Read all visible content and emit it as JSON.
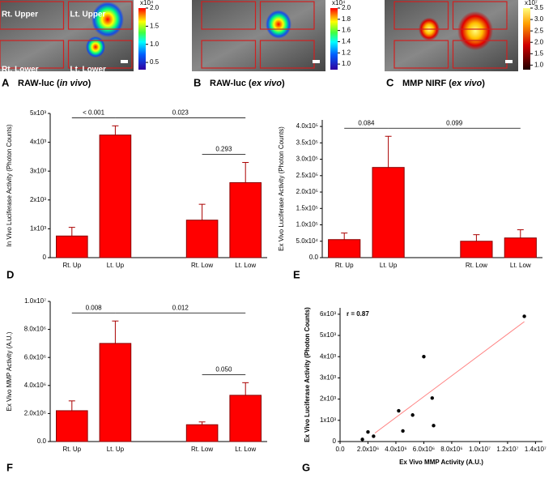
{
  "image_panels": [
    {
      "letter": "A",
      "title": [
        "RAW-luc (",
        "in vivo",
        ")"
      ],
      "regions": [
        "Rt. Upper",
        "Lt. Upper",
        "Rt. Lower",
        "Lt. Lower"
      ],
      "colorbar": {
        "colormap": "jet",
        "exponent": "x10⁴",
        "range": [
          0.3,
          2.0
        ],
        "ticks": [
          {
            "value": 2,
            "label": "2.0"
          },
          1.5,
          {
            "value": 1,
            "label": "1.0"
          },
          0.5
        ]
      }
    },
    {
      "letter": "B",
      "title": [
        "RAW-luc (",
        "ex vivo",
        ")"
      ],
      "colorbar": {
        "colormap": "jet",
        "exponent": "x10⁴",
        "range": [
          0.9,
          2.0
        ],
        "ticks": [
          {
            "value": 2,
            "label": "2.0"
          },
          1.8,
          1.6,
          1.4,
          1.2,
          {
            "value": 1,
            "label": "1.0"
          }
        ]
      }
    },
    {
      "letter": "C",
      "title": [
        "MMP NIRF (",
        "ex vivo",
        ")"
      ],
      "colorbar": {
        "colormap": "hot",
        "exponent": "x10⁷",
        "range": [
          0.8,
          3.5
        ],
        "ticks": [
          3.5,
          {
            "value": 3,
            "label": "3.0"
          },
          2.5,
          {
            "value": 2,
            "label": "2.0"
          },
          1.5,
          {
            "value": 1,
            "label": "1.0"
          }
        ]
      }
    }
  ],
  "chart_data": [
    {
      "type": "bar",
      "letter": "D",
      "ylabel": "In Vivo Luciferase Activity (Photon Counts)",
      "color": "#ff0000",
      "categories": [
        "Rt. Up",
        "Lt. Up",
        "Rt. Low",
        "Lt. Low"
      ],
      "values": [
        750,
        4250,
        1300,
        2600
      ],
      "errors": [
        300,
        320,
        550,
        700
      ],
      "ylim": [
        0,
        5000
      ],
      "yticks": [
        0,
        {
          "value": 1000,
          "label": "1x10³"
        },
        {
          "value": 2000,
          "label": "2x10³"
        },
        {
          "value": 3000,
          "label": "3x10³"
        },
        {
          "value": 4000,
          "label": "4x10³"
        },
        {
          "value": 5000,
          "label": "5x10³"
        }
      ],
      "annotations": [
        {
          "text": "< 0.001",
          "from": 0,
          "to": 1
        },
        {
          "text": "0.023",
          "from": 1,
          "to": 3
        },
        {
          "text": "0.293",
          "from": 2,
          "to": 3
        }
      ]
    },
    {
      "type": "bar",
      "letter": "E",
      "ylabel": "Ex Vivo Luciferase Activity (Photon Counts)",
      "color": "#ff0000",
      "categories": [
        "Rt. Up",
        "Lt. Up",
        "Rt. Low",
        "Lt. Low"
      ],
      "values": [
        55000,
        275000,
        50000,
        60000
      ],
      "errors": [
        20000,
        95000,
        20000,
        25000
      ],
      "ylim": [
        0,
        420000
      ],
      "yticks": [
        {
          "value": 0,
          "label": "0.0"
        },
        {
          "value": 50000,
          "label": "5.0x10⁴"
        },
        {
          "value": 100000,
          "label": "1.0x10⁵"
        },
        {
          "value": 150000,
          "label": "1.5x10⁵"
        },
        {
          "value": 200000,
          "label": "2.0x10⁵"
        },
        {
          "value": 250000,
          "label": "2.5x10⁵"
        },
        {
          "value": 300000,
          "label": "3.0x10⁵"
        },
        {
          "value": 350000,
          "label": "3.5x10⁵"
        },
        {
          "value": 400000,
          "label": "4.0x10⁵"
        }
      ],
      "annotations": [
        {
          "text": "0.084",
          "from": 0,
          "to": 1
        },
        {
          "text": "0.099",
          "from": 1,
          "to": 3
        }
      ]
    },
    {
      "type": "bar",
      "letter": "F",
      "ylabel": "Ex Vivo MMP Activity (A.U.)",
      "color": "#ff0000",
      "categories": [
        "Rt. Up",
        "Lt. Up",
        "Rt. Low",
        "Lt. Low"
      ],
      "values": [
        2200000,
        7000000,
        1200000,
        3300000
      ],
      "errors": [
        700000,
        1600000,
        200000,
        900000
      ],
      "ylim": [
        0,
        10000000
      ],
      "yticks": [
        {
          "value": 0,
          "label": "0.0"
        },
        {
          "value": 2000000,
          "label": "2.0x10⁶"
        },
        {
          "value": 4000000,
          "label": "4.0x10⁶"
        },
        {
          "value": 6000000,
          "label": "6.0x10⁶"
        },
        {
          "value": 8000000,
          "label": "8.0x10⁶"
        },
        {
          "value": 10000000,
          "label": "1.0x10⁷"
        }
      ],
      "annotations": [
        {
          "text": "0.008",
          "from": 0,
          "to": 1
        },
        {
          "text": "0.012",
          "from": 1,
          "to": 3
        },
        {
          "text": "0.050",
          "from": 2,
          "to": 3
        }
      ]
    },
    {
      "type": "scatter",
      "letter": "G",
      "xlabel": "Ex Vivo MMP Activity (A.U.)",
      "ylabel": "Ex Vivo Luciferase Activity (Photon Counts)",
      "color": "#000000",
      "annotation": "r = 0.87",
      "x": [
        1600000,
        2000000,
        2400000,
        4500000,
        4200000,
        5200000,
        6000000,
        6600000,
        6700000,
        13200000
      ],
      "values": [
        100,
        450,
        250,
        500,
        1450,
        1250,
        4000,
        2050,
        750,
        5900
      ],
      "fit_line": {
        "color": "#ff8080",
        "x": [
          2500000,
          13200000
        ],
        "y": [
          400,
          5650
        ]
      },
      "xlim": [
        0,
        14500000
      ],
      "xticks": [
        {
          "value": 0,
          "label": "0.0"
        },
        {
          "value": 2000000,
          "label": "2.0x10⁶"
        },
        {
          "value": 4000000,
          "label": "4.0x10⁶"
        },
        {
          "value": 6000000,
          "label": "6.0x10⁶"
        },
        {
          "value": 8000000,
          "label": "8.0x10⁶"
        },
        {
          "value": 10000000,
          "label": "1.0x10⁷"
        },
        {
          "value": 12000000,
          "label": "1.2x10⁷"
        },
        {
          "value": 14000000,
          "label": "1.4x10⁷"
        }
      ],
      "ylim": [
        0,
        6300
      ],
      "yticks": [
        0,
        {
          "value": 1000,
          "label": "1x10³"
        },
        {
          "value": 2000,
          "label": "2x10³"
        },
        {
          "value": 3000,
          "label": "3x10³"
        },
        {
          "value": 4000,
          "label": "4x10³"
        },
        {
          "value": 5000,
          "label": "5x10³"
        },
        {
          "value": 6000,
          "label": "6x10³"
        }
      ]
    }
  ]
}
